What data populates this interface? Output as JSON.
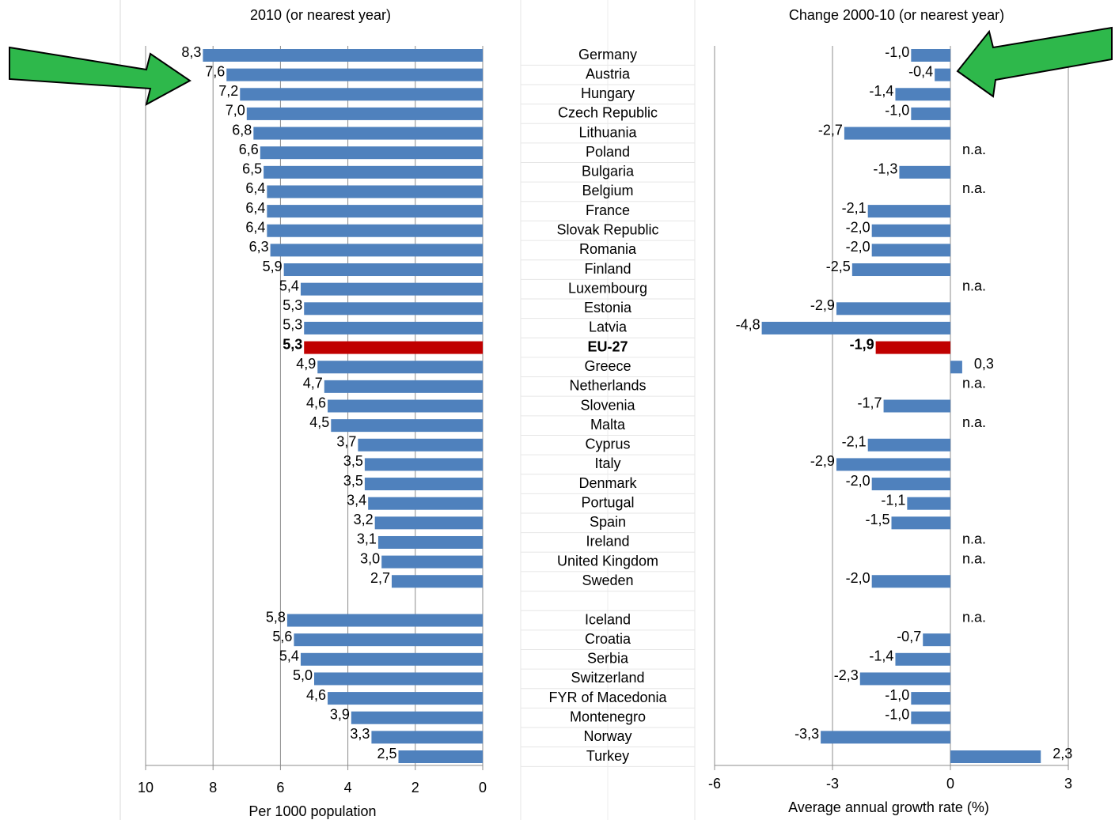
{
  "chart_data": [
    {
      "type": "bar",
      "orientation": "horizontal",
      "title": "2010 (or nearest year)",
      "xlabel": "Per 1000 population",
      "categories": [
        "Germany",
        "Austria",
        "Hungary",
        "Czech Republic",
        "Lithuania",
        "Poland",
        "Bulgaria",
        "Belgium",
        "France",
        "Slovak Republic",
        "Romania",
        "Finland",
        "Luxembourg",
        "Estonia",
        "Latvia",
        "EU-27",
        "Greece",
        "Netherlands",
        "Slovenia",
        "Malta",
        "Cyprus",
        "Italy",
        "Denmark",
        "Portugal",
        "Spain",
        "Ireland",
        "United Kingdom",
        "Sweden",
        null,
        "Iceland",
        "Croatia",
        "Serbia",
        "Switzerland",
        "FYR of Macedonia",
        "Montenegro",
        "Norway",
        "Turkey"
      ],
      "values": [
        8.3,
        7.6,
        7.2,
        7.0,
        6.8,
        6.6,
        6.5,
        6.4,
        6.4,
        6.4,
        6.3,
        5.9,
        5.4,
        5.3,
        5.3,
        5.3,
        4.9,
        4.7,
        4.6,
        4.5,
        3.7,
        3.5,
        3.5,
        3.4,
        3.2,
        3.1,
        3.0,
        2.7,
        null,
        5.8,
        5.6,
        5.4,
        5.0,
        4.6,
        3.9,
        3.3,
        2.5
      ],
      "value_labels": [
        "8,3",
        "7,6",
        "7,2",
        "7,0",
        "6,8",
        "6,6",
        "6,5",
        "6,4",
        "6,4",
        "6,4",
        "6,3",
        "5,9",
        "5,4",
        "5,3",
        "5,3",
        "5,3",
        "4,9",
        "4,7",
        "4,6",
        "4,5",
        "3,7",
        "3,5",
        "3,5",
        "3,4",
        "3,2",
        "3,1",
        "3,0",
        "2,7",
        null,
        "5,8",
        "5,6",
        "5,4",
        "5,0",
        "4,6",
        "3,9",
        "3,3",
        "2,5"
      ],
      "color": "#4f81bd",
      "highlight": {
        "category": "EU-27",
        "color": "#c00000"
      },
      "xlim": [
        10,
        0
      ],
      "xticks": [
        10,
        8,
        6,
        4,
        2,
        0
      ],
      "grid": true
    },
    {
      "type": "bar",
      "orientation": "horizontal",
      "title": "Change 2000-10 (or nearest year)",
      "xlabel": "Average annual growth rate (%)",
      "values": [
        -1.0,
        -0.4,
        -1.4,
        -1.0,
        -2.7,
        null,
        -1.3,
        null,
        -2.1,
        -2.0,
        -2.0,
        -2.5,
        null,
        -2.9,
        -4.8,
        -1.9,
        0.3,
        null,
        -1.7,
        null,
        -2.1,
        -2.9,
        -2.0,
        -1.1,
        -1.5,
        null,
        null,
        -2.0,
        null,
        null,
        -0.7,
        -1.4,
        -2.3,
        -1.0,
        -1.0,
        -3.3,
        2.3
      ],
      "value_labels": [
        "-1,0",
        "-0,4",
        "-1,4",
        "-1,0",
        "-2,7",
        "n.a.",
        "-1,3",
        "n.a.",
        "-2,1",
        "-2,0",
        "-2,0",
        "-2,5",
        "n.a.",
        "-2,9",
        "-4,8",
        "-1,9",
        "0,3",
        "n.a.",
        "-1,7",
        "n.a.",
        "-2,1",
        "-2,9",
        "-2,0",
        "-1,1",
        "-1,5",
        "n.a.",
        "n.a.",
        "-2,0",
        null,
        "n.a.",
        "-0,7",
        "-1,4",
        "-2,3",
        "-1,0",
        "-1,0",
        "-3,3",
        "2,3"
      ],
      "color": "#4f81bd",
      "highlight": {
        "category": "EU-27",
        "color": "#c00000"
      },
      "xlim": [
        -6,
        3
      ],
      "xticks": [
        -6,
        -3,
        0,
        3
      ],
      "grid": true
    }
  ]
}
